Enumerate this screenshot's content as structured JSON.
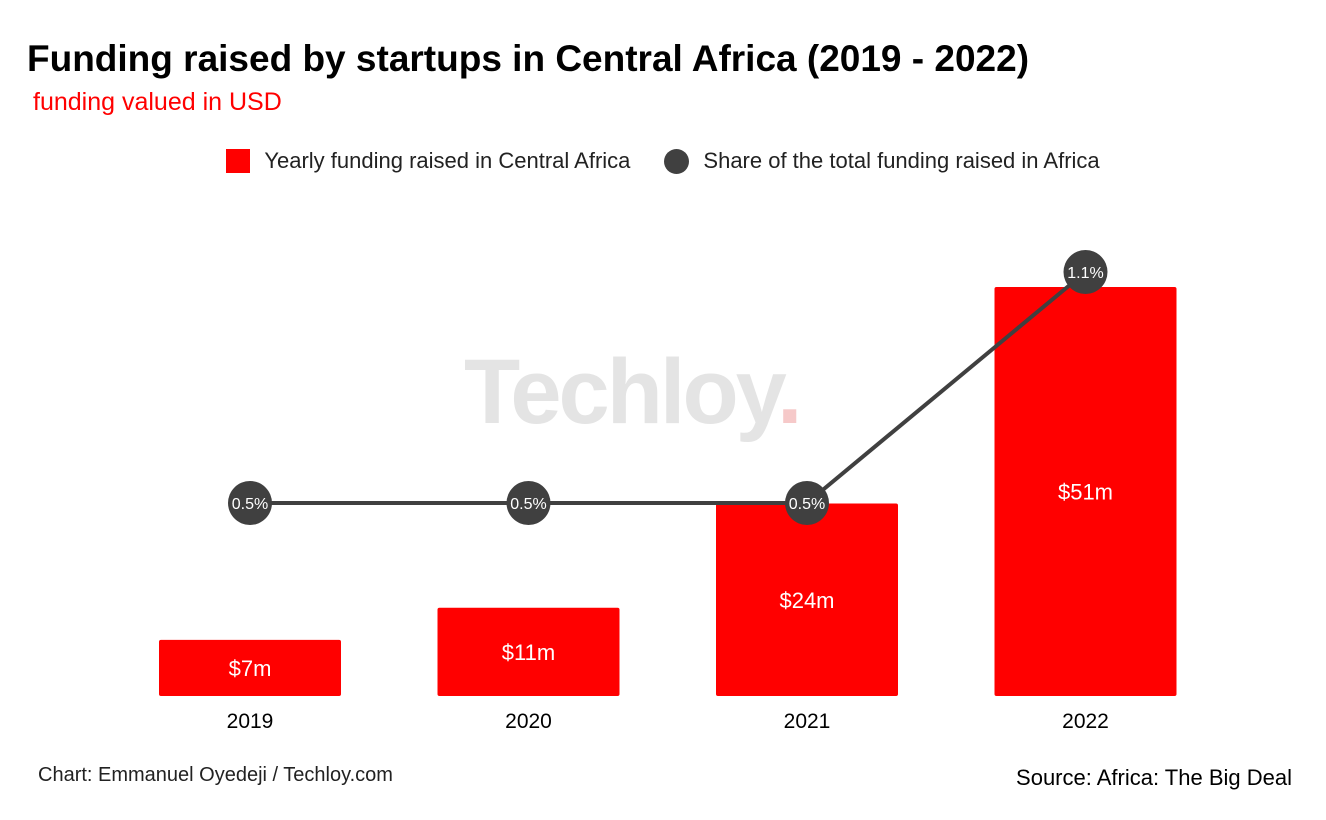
{
  "chart_data": {
    "type": "bar",
    "title": "Funding raised by startups in Central Africa (2019 - 2022)",
    "subtitle": "funding valued in USD",
    "categories": [
      "2019",
      "2020",
      "2021",
      "2022"
    ],
    "series": [
      {
        "name": "Yearly funding raised in Central Africa",
        "type": "bar",
        "values": [
          7,
          11,
          24,
          51
        ],
        "labels": [
          "$7m",
          "$11m",
          "$24m",
          "$51m"
        ],
        "color": "#ff0000"
      },
      {
        "name": "Share of the total funding raised in Africa",
        "type": "line",
        "values": [
          0.5,
          0.5,
          0.5,
          1.1
        ],
        "labels": [
          "0.5%",
          "0.5%",
          "0.5%",
          "1.1%"
        ],
        "color": "#404040"
      }
    ],
    "legend_position": "top-center",
    "grid": false,
    "footer_left": "Chart: Emmanuel Oyedeji / Techloy.com",
    "footer_right": "Source: Africa: The Big Deal",
    "watermark": "Techloy"
  }
}
